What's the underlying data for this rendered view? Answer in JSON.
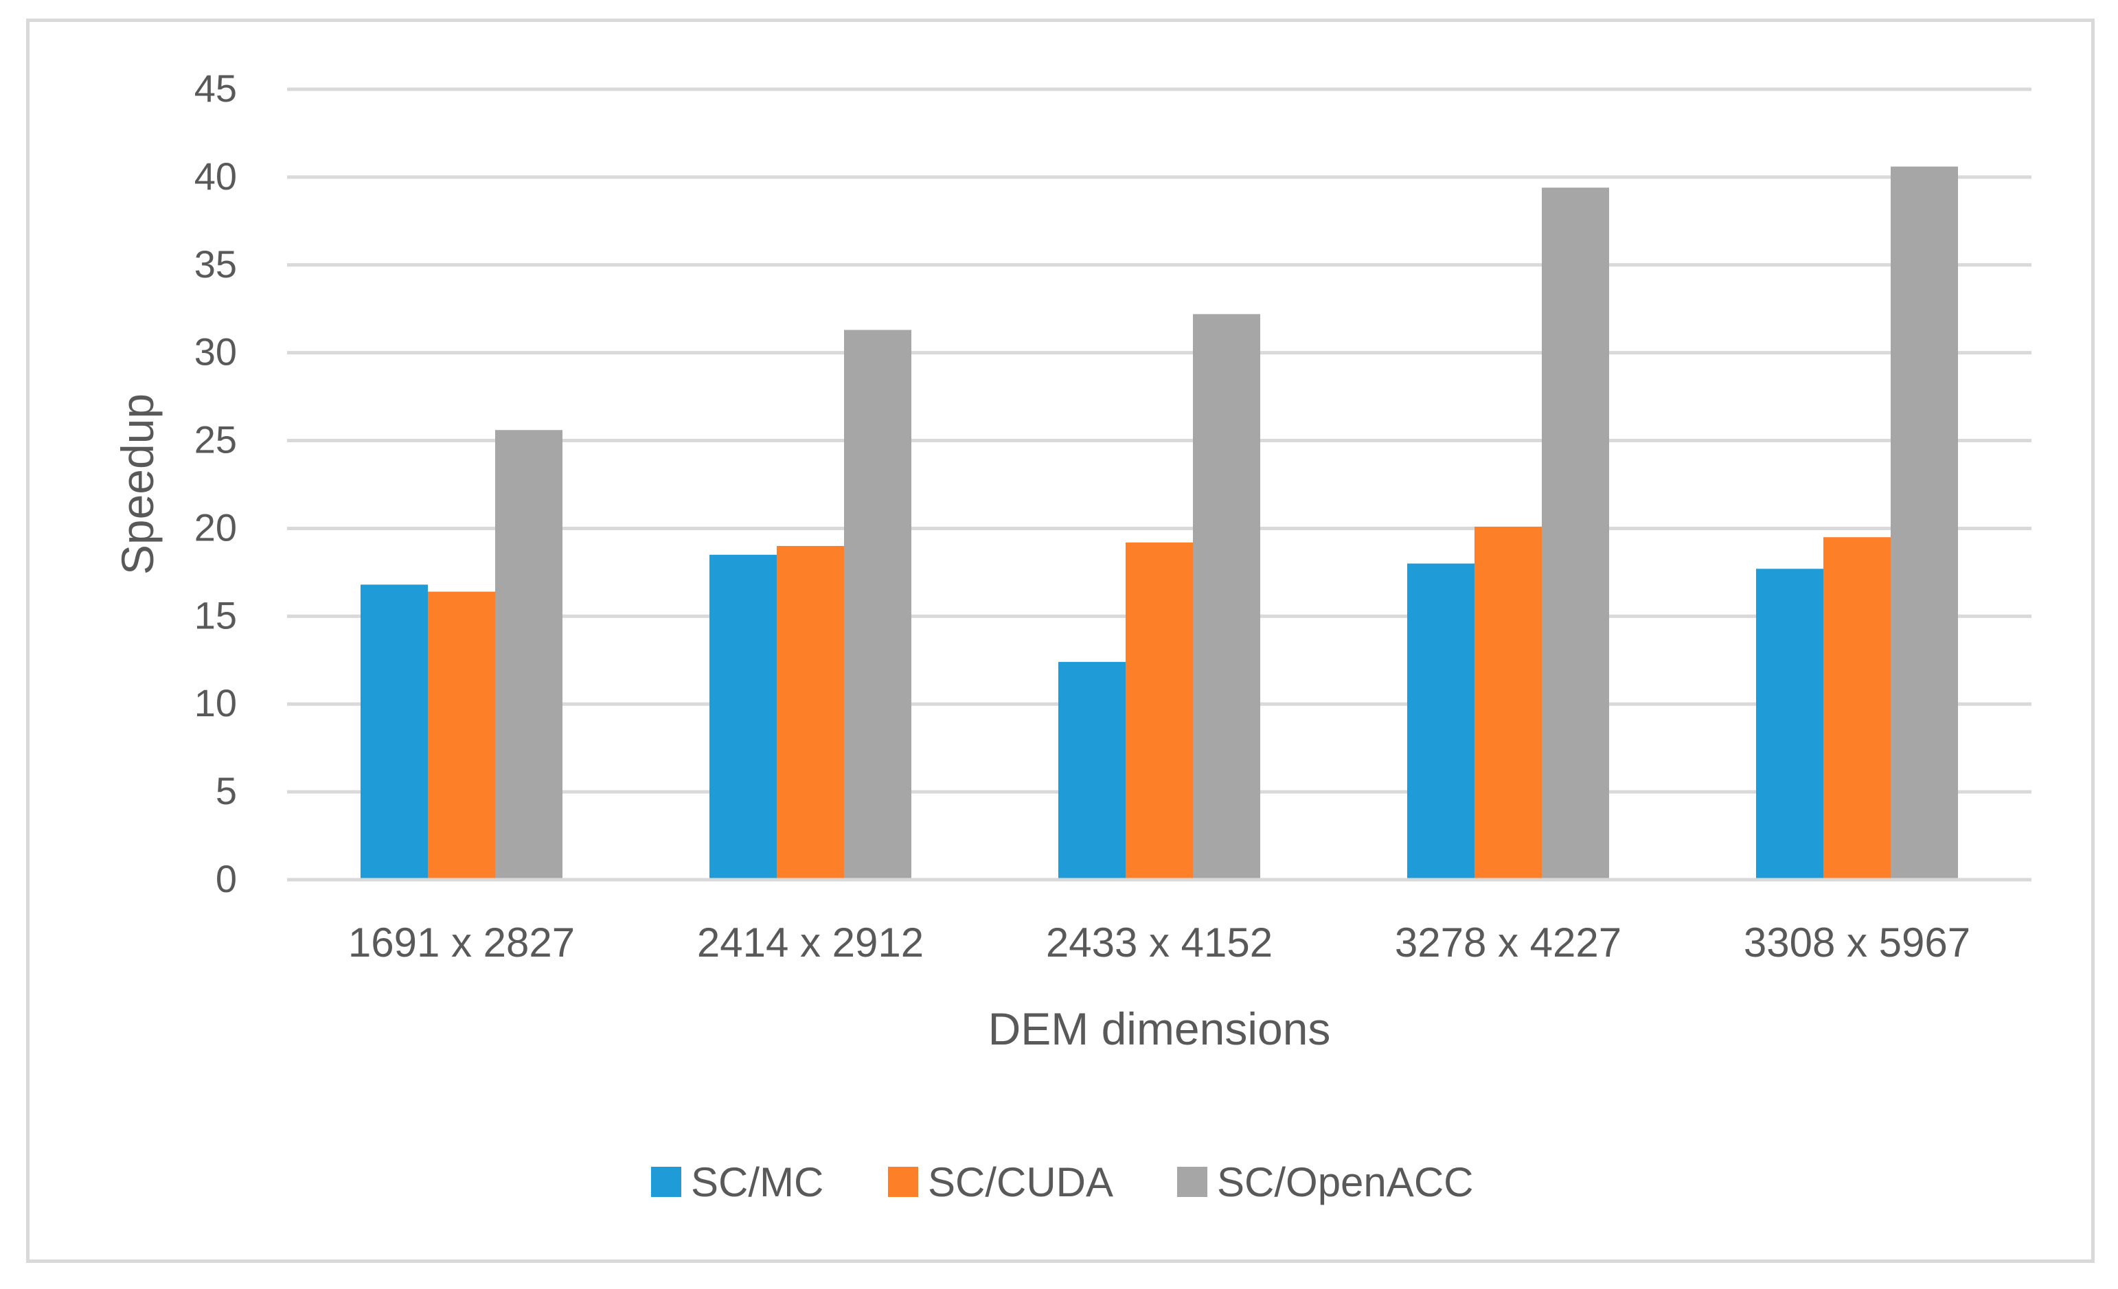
{
  "chart_data": {
    "type": "bar",
    "title": "",
    "xlabel": "DEM dimensions",
    "ylabel": "Speedup",
    "categories": [
      "1691 x 2827",
      "2414 x 2912",
      "2433 x 4152",
      "3278 x 4227",
      "3308 x 5967"
    ],
    "series": [
      {
        "name": "SC/MC",
        "color": "#1f9cd8",
        "values": [
          16.8,
          18.5,
          12.4,
          18.0,
          17.7
        ]
      },
      {
        "name": "SC/CUDA",
        "color": "#fd7f28",
        "values": [
          16.4,
          19.0,
          19.2,
          20.1,
          19.5
        ]
      },
      {
        "name": "SC/OpenACC",
        "color": "#a6a6a6",
        "values": [
          25.6,
          31.3,
          32.2,
          39.4,
          40.6
        ]
      }
    ],
    "ylim": [
      0,
      45
    ],
    "yticks": [
      0,
      5,
      10,
      15,
      20,
      25,
      30,
      35,
      40,
      45
    ],
    "grid": true,
    "legend": "bottom-center"
  }
}
